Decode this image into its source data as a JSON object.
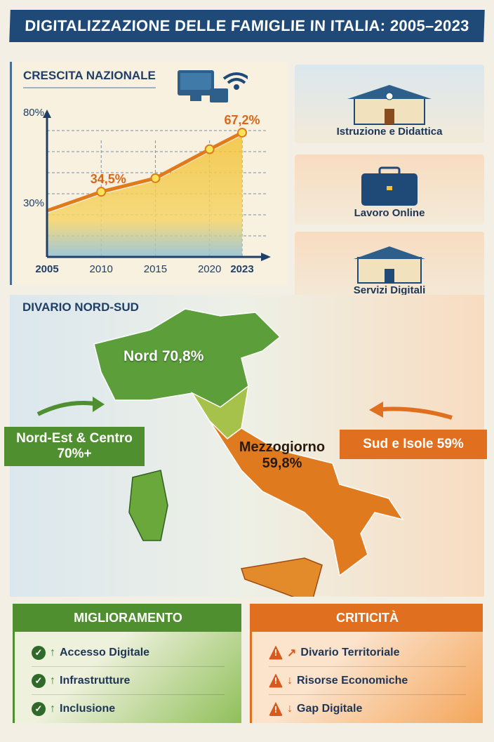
{
  "title": "DIGITALIZZAZIONE DELLE FAMIGLIE IN ITALIA: 2005–2023",
  "growth": {
    "title": "CRESCITA NAZIONALE",
    "icons": [
      "computer-icon",
      "wifi-icon"
    ]
  },
  "chart_data": {
    "type": "area",
    "title": "",
    "xlabel": "",
    "ylabel": "",
    "x_ticks": [
      "2005",
      "2010",
      "2015",
      "2020",
      "2023"
    ],
    "y_ticks": [
      "30%",
      "80%"
    ],
    "x": [
      2005,
      2010,
      2015,
      2020,
      2023
    ],
    "values": [
      24,
      34.5,
      42,
      58,
      67.2
    ],
    "data_labels": {
      "2010": "34,5%",
      "2023": "67,2%"
    },
    "ylim": [
      0,
      80
    ],
    "grid": true,
    "colors": {
      "line": "#e07a1a",
      "fill": "#f3c33a"
    }
  },
  "cards": [
    {
      "label": "Istruzione e Didattica",
      "icon": "school-icon"
    },
    {
      "label": "Lavoro Online",
      "icon": "briefcase-icon"
    },
    {
      "label": "Servizi Digitali",
      "icon": "building-icon"
    }
  ],
  "map": {
    "title": "DIVARIO NORD-SUD",
    "nord": "Nord 70,8%",
    "mezzogiorno_1": "Mezzogiorno",
    "mezzogiorno_2": "59,8%",
    "nordest_1": "Nord-Est & Centro",
    "nordest_2": "70%+",
    "sud": "Sud e Isole 59%"
  },
  "improve": {
    "title": "MIGLIORAMENTO",
    "color": "#4f8f2f",
    "items": [
      "Accesso Digitale",
      "Infrastrutture",
      "Inclusione"
    ]
  },
  "critical": {
    "title": "CRITICITÀ",
    "color": "#e0701f",
    "items": [
      "Divario Territoriale",
      "Risorse Economiche",
      "Gap Digitale"
    ]
  }
}
